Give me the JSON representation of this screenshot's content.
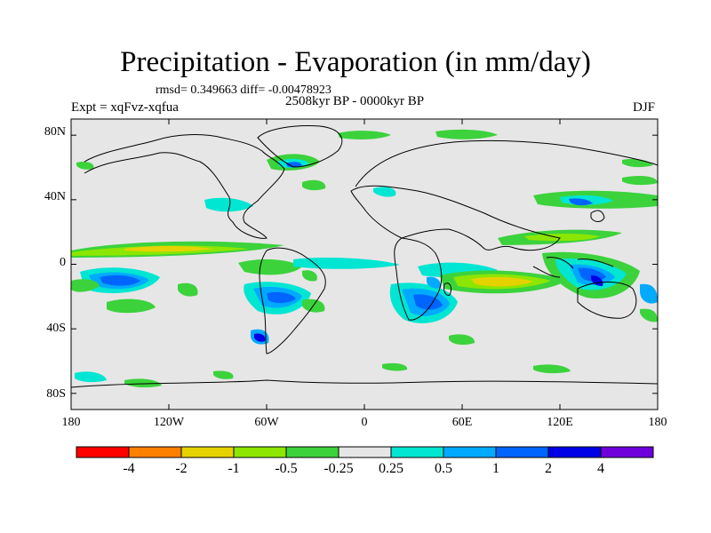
{
  "title": "Precipitation - Evaporation (in mm/day)",
  "stats_text": "rmsd= 0.349663 diff= -0.00478923",
  "period": "2508kyr BP - 0000kyr BP",
  "experiment": "Expt = xqFvz-xqfua",
  "season": "DJF",
  "lat_labels": [
    "80N",
    "40N",
    "0",
    "40S",
    "80S"
  ],
  "lon_labels": [
    "180",
    "120W",
    "60W",
    "0",
    "60E",
    "120E",
    "180"
  ],
  "colorbar": {
    "colors": [
      "#ff0000",
      "#ff8000",
      "#e6d200",
      "#8ce600",
      "#3cd23c",
      "#e6e6e6",
      "#00e6d2",
      "#00aaff",
      "#0064ff",
      "#0000e6",
      "#6e00dc"
    ],
    "labels": [
      "-4",
      "-2",
      "-1",
      "-0.5",
      "-0.25",
      "0.25",
      "0.5",
      "1",
      "2",
      "4"
    ]
  },
  "colors": {
    "background": "#e6e6e6",
    "coastline": "#000000"
  }
}
